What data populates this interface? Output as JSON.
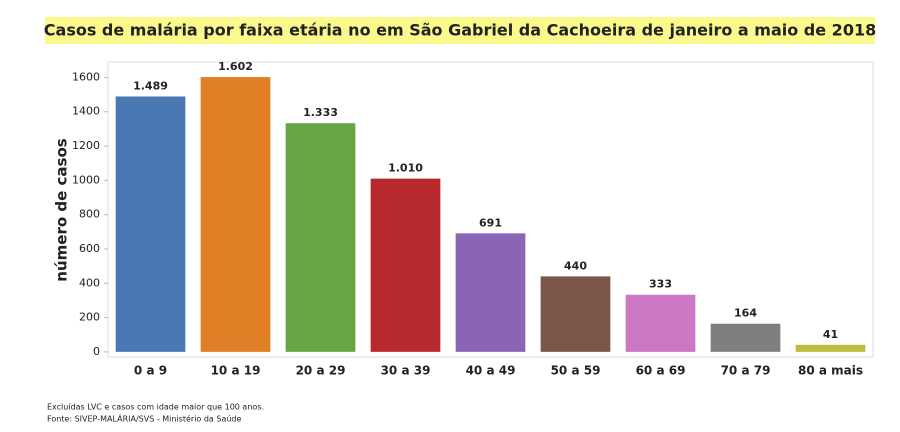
{
  "chart_data": {
    "type": "bar",
    "title": "Casos de malária por faixa etária no em São Gabriel da Cachoeira de janeiro a maio de 2018",
    "y_label": "número de casos",
    "categories": [
      "0 a 9",
      "10 a 19",
      "20 a 29",
      "30 a 39",
      "40 a 49",
      "50 a 59",
      "60 a 69",
      "70 a 79",
      "80 a mais"
    ],
    "values": [
      1489,
      1602,
      1333,
      1010,
      691,
      440,
      333,
      164,
      41
    ],
    "value_labels": [
      "1.489",
      "1.602",
      "1.333",
      "1.010",
      "691",
      "440",
      "333",
      "164",
      "41"
    ],
    "colors": [
      "#4a78b5",
      "#e07f26",
      "#66a544",
      "#b8292e",
      "#8a64b5",
      "#7d564b",
      "#cb77c3",
      "#7f7f7f",
      "#bcbd3a"
    ],
    "ylim": [
      -30,
      1690
    ],
    "yticks": [
      0,
      200,
      400,
      600,
      800,
      1000,
      1200,
      1400,
      1600
    ],
    "notes": [
      "Excluídas LVC e casos com idade maior que 100 anos.",
      "Fonte: SIVEP-MALÁRIA/SVS - Ministério da Saúde"
    ]
  }
}
